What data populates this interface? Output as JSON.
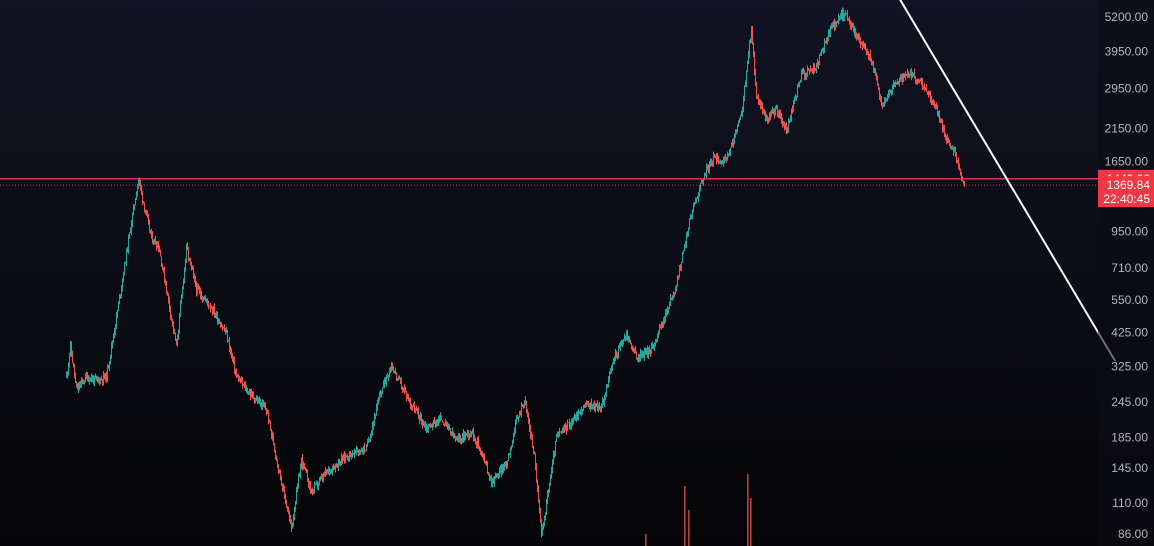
{
  "chart_data": {
    "type": "candlestick",
    "title": "",
    "xlabel": "",
    "ylabel": "",
    "y_scale": "log",
    "ylim": [
      80,
      5800
    ],
    "y_ticks": [
      "5200.00",
      "3950.00",
      "2950.00",
      "2150.00",
      "1650.00",
      "950.00",
      "710.00",
      "550.00",
      "425.00",
      "325.00",
      "245.00",
      "185.00",
      "145.00",
      "110.00",
      "86.00"
    ],
    "price_path": [
      [
        0,
        300
      ],
      [
        4,
        380
      ],
      [
        10,
        270
      ],
      [
        20,
        300
      ],
      [
        30,
        290
      ],
      [
        40,
        300
      ],
      [
        50,
        480
      ],
      [
        60,
        800
      ],
      [
        72,
        1440
      ],
      [
        78,
        1150
      ],
      [
        85,
        900
      ],
      [
        92,
        850
      ],
      [
        100,
        600
      ],
      [
        110,
        380
      ],
      [
        120,
        830
      ],
      [
        130,
        600
      ],
      [
        145,
        520
      ],
      [
        160,
        420
      ],
      [
        170,
        300
      ],
      [
        180,
        270
      ],
      [
        200,
        230
      ],
      [
        215,
        130
      ],
      [
        225,
        90
      ],
      [
        235,
        155
      ],
      [
        245,
        120
      ],
      [
        260,
        140
      ],
      [
        280,
        160
      ],
      [
        300,
        170
      ],
      [
        315,
        270
      ],
      [
        325,
        330
      ],
      [
        330,
        300
      ],
      [
        345,
        240
      ],
      [
        360,
        200
      ],
      [
        375,
        215
      ],
      [
        390,
        180
      ],
      [
        405,
        195
      ],
      [
        415,
        165
      ],
      [
        425,
        130
      ],
      [
        440,
        150
      ],
      [
        450,
        210
      ],
      [
        458,
        250
      ],
      [
        468,
        160
      ],
      [
        475,
        85
      ],
      [
        490,
        185
      ],
      [
        505,
        210
      ],
      [
        520,
        240
      ],
      [
        535,
        235
      ],
      [
        548,
        350
      ],
      [
        560,
        420
      ],
      [
        570,
        350
      ],
      [
        585,
        370
      ],
      [
        600,
        500
      ],
      [
        610,
        620
      ],
      [
        625,
        1100
      ],
      [
        638,
        1500
      ],
      [
        648,
        1700
      ],
      [
        660,
        1650
      ],
      [
        675,
        2400
      ],
      [
        685,
        4700
      ],
      [
        690,
        2800
      ],
      [
        700,
        2300
      ],
      [
        710,
        2500
      ],
      [
        720,
        2100
      ],
      [
        735,
        3300
      ],
      [
        750,
        3500
      ],
      [
        765,
        4800
      ],
      [
        778,
        5400
      ],
      [
        790,
        4500
      ],
      [
        805,
        3700
      ],
      [
        815,
        2600
      ],
      [
        830,
        3100
      ],
      [
        845,
        3300
      ],
      [
        860,
        2900
      ],
      [
        870,
        2500
      ],
      [
        880,
        2000
      ],
      [
        890,
        1700
      ],
      [
        898,
        1380
      ]
    ],
    "volume_spikes": [
      {
        "bar": 579,
        "value": 0.2
      },
      {
        "bar": 618,
        "value": 1.0
      },
      {
        "bar": 622,
        "value": 0.6
      },
      {
        "bar": 681,
        "value": 1.2
      },
      {
        "bar": 684,
        "value": 0.8
      }
    ],
    "trendline": {
      "from": {
        "bar": 820,
        "price": 7200
      },
      "to": {
        "bar": 1049,
        "price": 340
      }
    },
    "horizontal_level": {
      "price": 1440,
      "label": "1440.00"
    },
    "last_price": {
      "value": 1369.84,
      "label": "1369.84",
      "countdown": "22:40:45"
    },
    "colors": {
      "up": "#26a69a",
      "down": "#ef5350",
      "level": "#f23645",
      "trendline": "#ffffff",
      "axis_text": "#b2b5be",
      "price_tag": "#f23645"
    }
  }
}
